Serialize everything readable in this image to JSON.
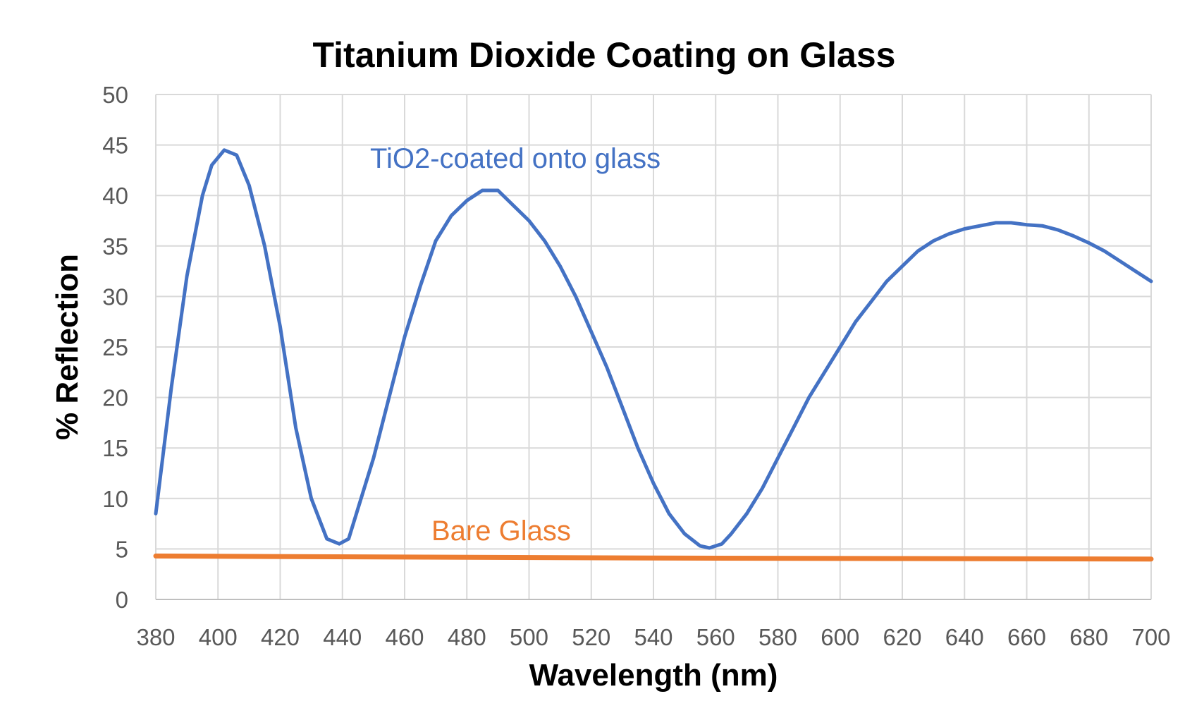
{
  "chart_data": {
    "type": "line",
    "title": "Titanium Dioxide Coating on Glass",
    "xlabel": "Wavelength (nm)",
    "ylabel": "% Reflection",
    "xlim": [
      380,
      700
    ],
    "ylim": [
      0,
      50
    ],
    "xticks": [
      380,
      400,
      420,
      440,
      460,
      480,
      500,
      520,
      540,
      560,
      580,
      600,
      620,
      640,
      660,
      680,
      700
    ],
    "yticks": [
      0,
      5,
      10,
      15,
      20,
      25,
      30,
      35,
      40,
      45,
      50
    ],
    "grid": true,
    "legend": "none (inline labels)",
    "series": [
      {
        "name": "TiO2-coated onto glass",
        "color": "#4472C4",
        "x": [
          380,
          385,
          390,
          395,
          398,
          402,
          406,
          410,
          415,
          420,
          425,
          430,
          435,
          439,
          442,
          445,
          450,
          455,
          460,
          465,
          470,
          475,
          480,
          485,
          490,
          495,
          500,
          505,
          510,
          515,
          520,
          525,
          530,
          535,
          540,
          545,
          550,
          555,
          558,
          562,
          565,
          570,
          575,
          580,
          585,
          590,
          595,
          600,
          605,
          610,
          615,
          620,
          625,
          630,
          635,
          640,
          645,
          650,
          655,
          660,
          665,
          670,
          675,
          680,
          685,
          690,
          695,
          700
        ],
        "y": [
          8.5,
          21,
          32,
          40,
          43,
          44.5,
          44,
          41,
          35,
          27,
          17,
          10,
          6,
          5.5,
          6,
          9,
          14,
          20,
          26,
          31,
          35.5,
          38,
          39.5,
          40.5,
          40.5,
          39,
          37.5,
          35.5,
          33,
          30,
          26.5,
          23,
          19,
          15,
          11.5,
          8.5,
          6.5,
          5.3,
          5.1,
          5.5,
          6.5,
          8.5,
          11,
          14,
          17,
          20,
          22.5,
          25,
          27.5,
          29.5,
          31.5,
          33,
          34.5,
          35.5,
          36.2,
          36.7,
          37,
          37.3,
          37.3,
          37.1,
          37,
          36.6,
          36,
          35.3,
          34.5,
          33.5,
          32.5,
          31.5
        ]
      },
      {
        "name": "Bare Glass",
        "color": "#ED7D31",
        "x": [
          380,
          460,
          540,
          620,
          700
        ],
        "y": [
          4.3,
          4.2,
          4.1,
          4.05,
          4.0
        ]
      }
    ]
  }
}
